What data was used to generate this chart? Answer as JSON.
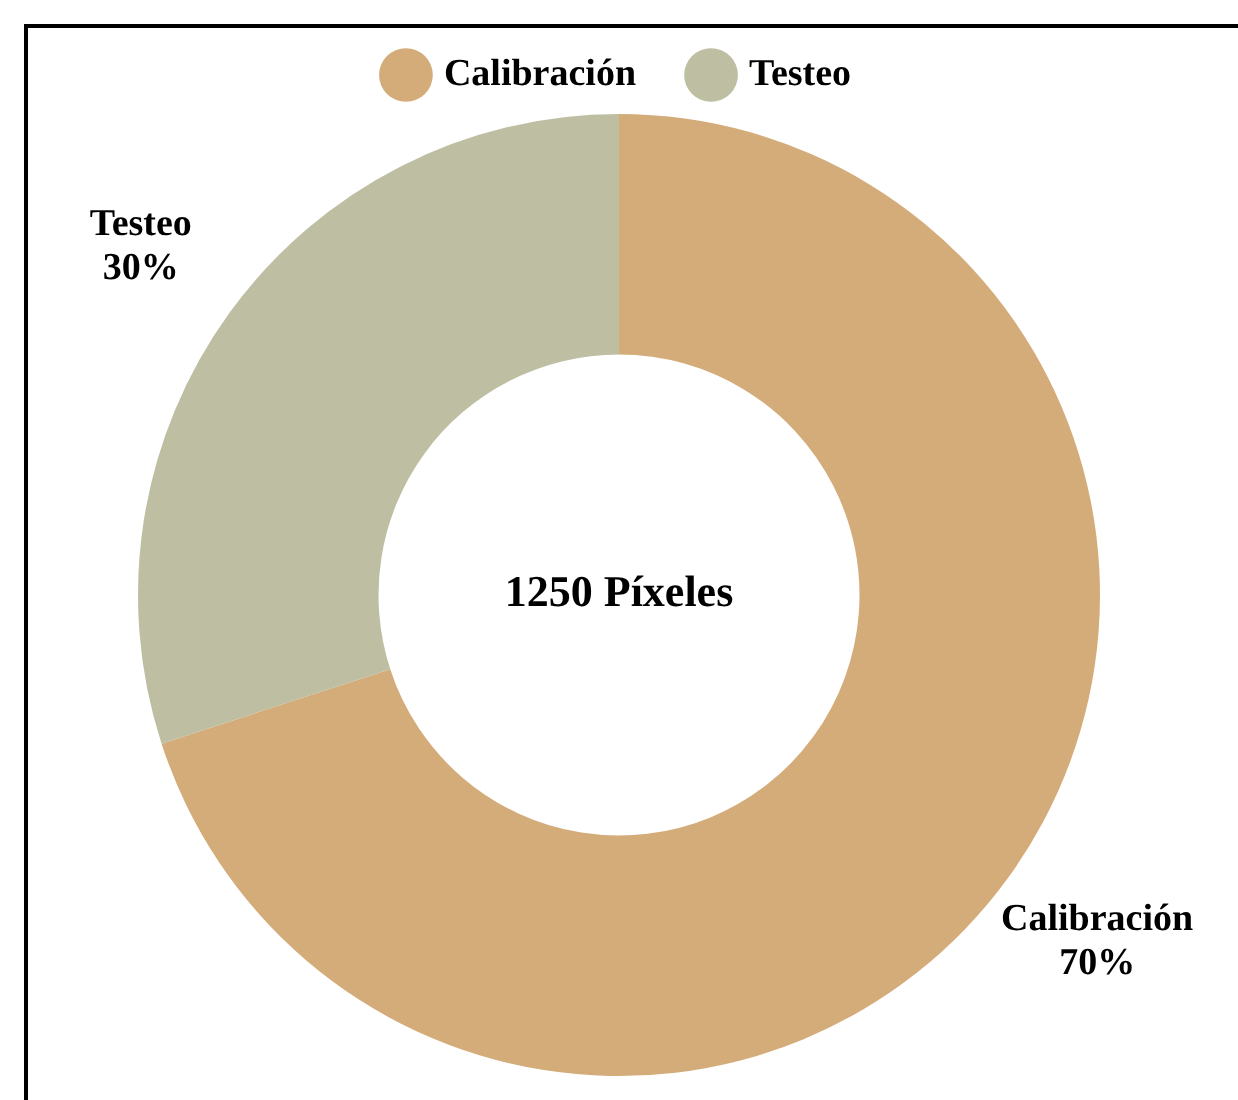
{
  "chart_data": {
    "type": "donut",
    "categories": [
      "Calibración",
      "Testeo"
    ],
    "values": [
      70,
      30
    ],
    "value_labels": [
      "70%",
      "30%"
    ],
    "colors": [
      "#d4ac7a",
      "#bdbea2"
    ],
    "legend": "top",
    "annotations": [
      "1250 Píxeles"
    ]
  }
}
